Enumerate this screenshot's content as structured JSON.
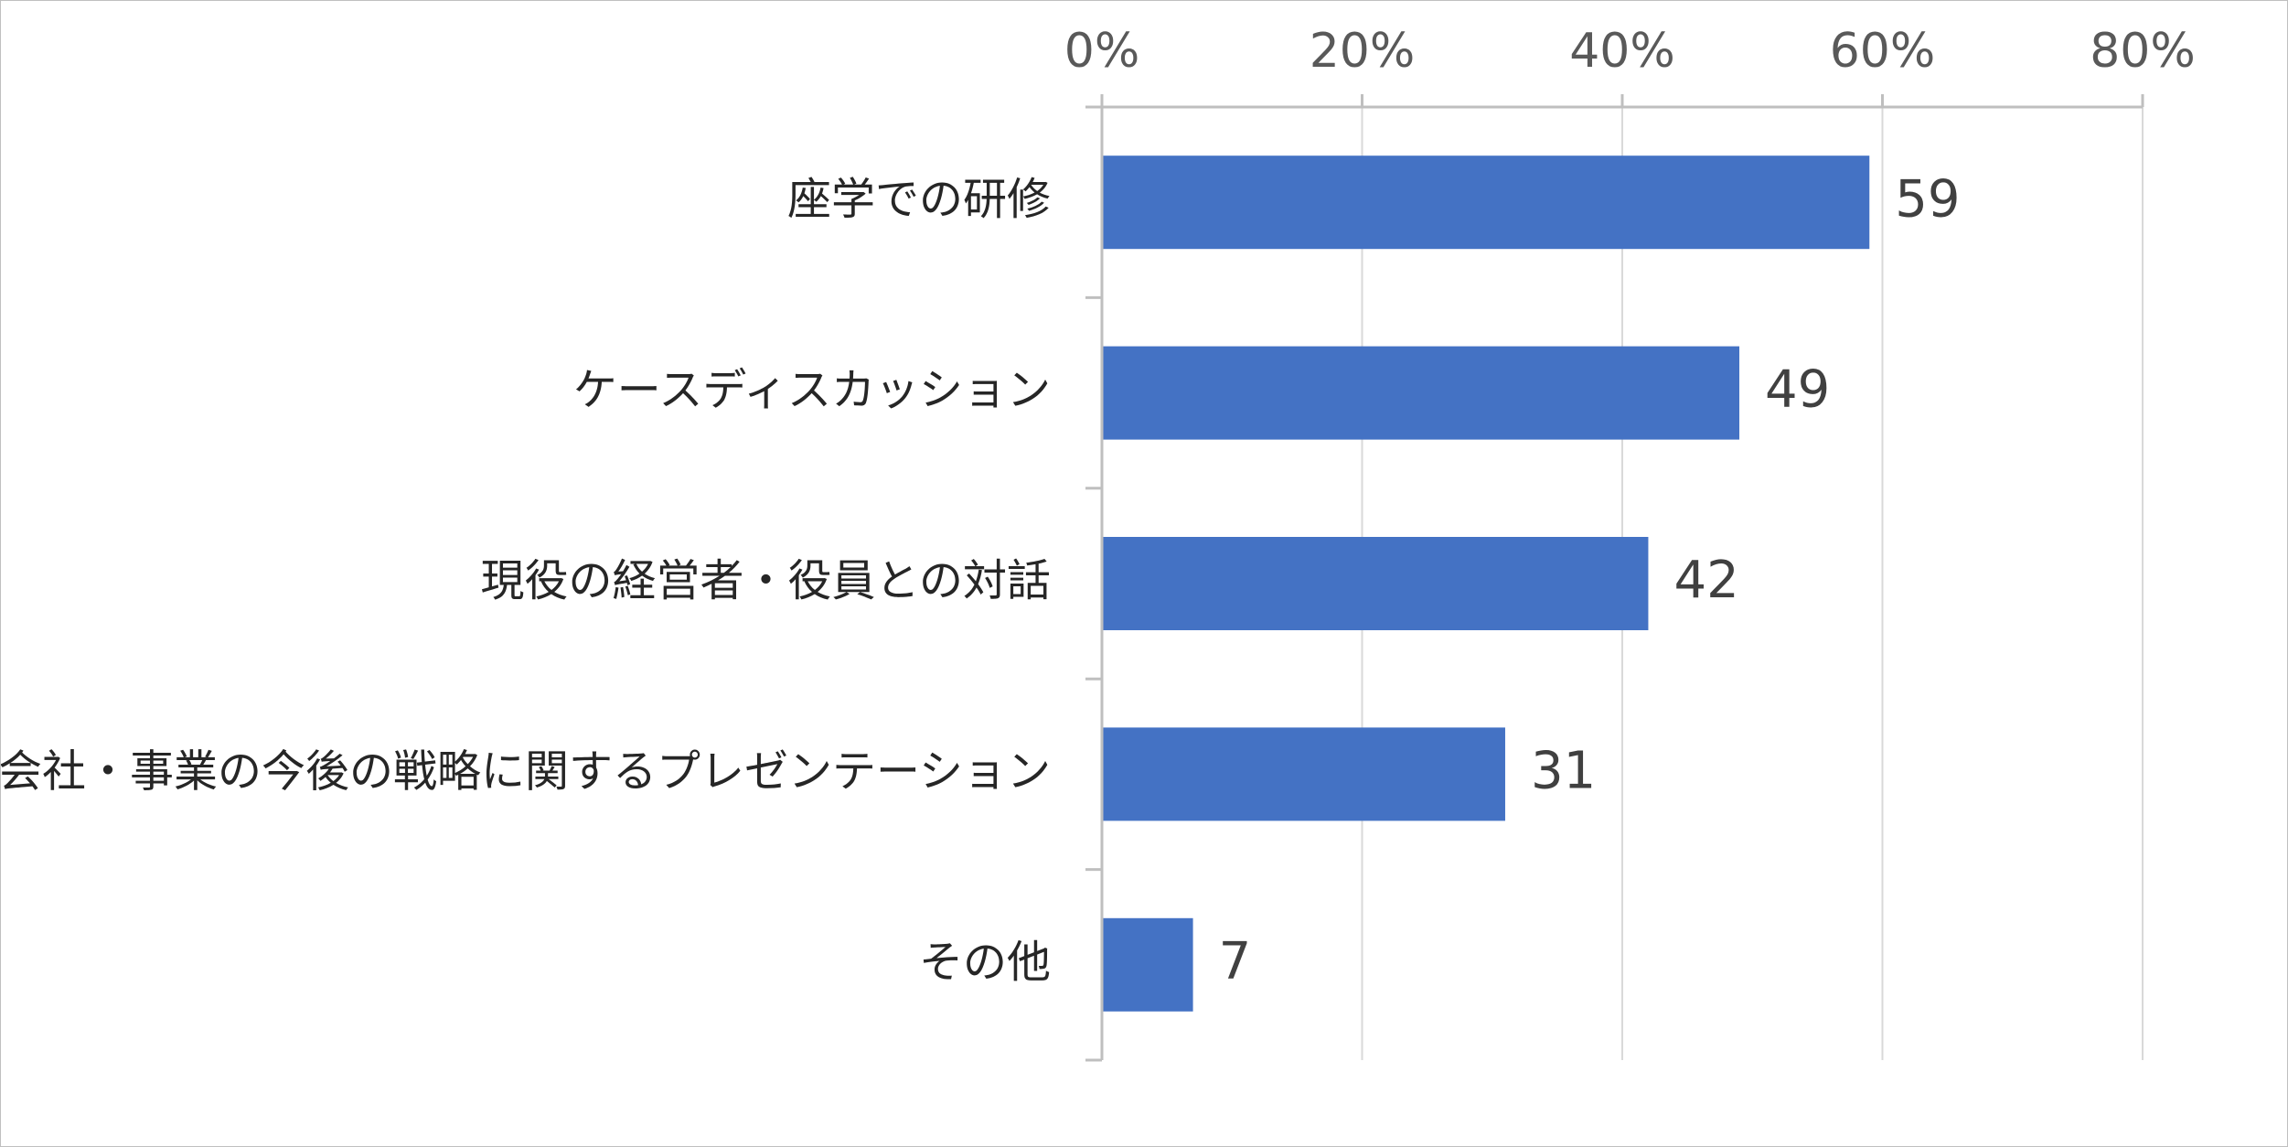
{
  "chart_data": {
    "type": "bar",
    "orientation": "horizontal",
    "categories": [
      "座学での研修",
      "ケースディスカッション",
      "現役の経営者・役員との対話",
      "会社・事業の今後の戦略に関するプレゼンテーション",
      "その他"
    ],
    "values": [
      59,
      49,
      42,
      31,
      7
    ],
    "data_labels": [
      "59",
      "49",
      "42",
      "31",
      "7"
    ],
    "xlim": [
      0,
      80
    ],
    "x_ticks": [
      0,
      20,
      40,
      60,
      80
    ],
    "x_tick_labels": [
      "0%",
      "20%",
      "40%",
      "60%",
      "80%"
    ],
    "x_axis_position": "top",
    "grid": "vertical",
    "legend": "none",
    "title": "",
    "xlabel": "",
    "ylabel": "",
    "colors": {
      "bar": "#4472c4",
      "grid": "#d9d9d9",
      "axis": "#bfbfbf",
      "frame": "#bfbfbf"
    }
  }
}
